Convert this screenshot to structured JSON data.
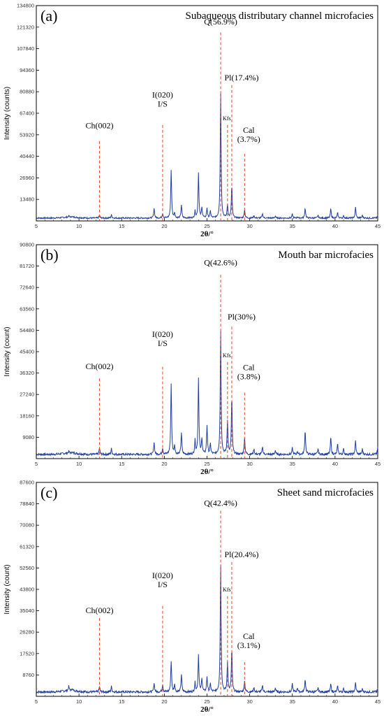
{
  "chart_data": [
    {
      "type": "line",
      "panel_letter": "(a)",
      "title": "Subaqueous distributary channel microfacies",
      "xlabel": "2θ/°",
      "ylabel": "Intensity (counts)",
      "xlim": [
        5,
        45
      ],
      "ylim": [
        0,
        134800
      ],
      "x_ticks": [
        5,
        10,
        15,
        20,
        25,
        30,
        35,
        40,
        45
      ],
      "y_ticks": [
        13480,
        26960,
        40440,
        53920,
        67400,
        80880,
        94360,
        107840,
        121320,
        134800
      ],
      "series": [
        {
          "color": "#1f3f9e",
          "x": [
            5,
            8.8,
            9.2,
            12.4,
            13.8,
            18.8,
            19.8,
            20.8,
            21.2,
            22.0,
            23.6,
            24.0,
            24.4,
            25.0,
            25.4,
            26.6,
            27.4,
            27.9,
            29.4,
            30.5,
            31.5,
            33.0,
            35.0,
            35.6,
            36.5,
            38.0,
            39.5,
            40.3,
            41.0,
            42.4,
            43.2,
            45
          ],
          "y": [
            2000,
            2600,
            2200,
            3600,
            3800,
            8000,
            4800,
            32000,
            5000,
            10000,
            6000,
            30000,
            8500,
            8000,
            6000,
            80000,
            10000,
            22000,
            7000,
            3200,
            4500,
            3000,
            4200,
            2500,
            8000,
            3500,
            7500,
            5000,
            3000,
            8500,
            3500,
            3200
          ]
        }
      ],
      "annotations": [
        {
          "label": "Ch(002)",
          "x": 12.4,
          "label_y": 58000,
          "line_top": 50000
        },
        {
          "label": "I(020)",
          "label2": "I/S",
          "x": 19.8,
          "label_y": 72000,
          "line_top": 60000
        },
        {
          "label": "Q(56.9%)",
          "x": 26.6,
          "label_y": 123000,
          "line_top": 118000
        },
        {
          "label": "Kfs",
          "x": 27.4,
          "label_y": 63000,
          "line_top": 60000,
          "small": true
        },
        {
          "label": "Pl(17.4%)",
          "x": 27.9,
          "label_y": 88000,
          "line_top": 85000
        },
        {
          "label": "Cal",
          "label2": "(3.7%)",
          "x": 29.4,
          "label_y": 50000,
          "line_top": 42000
        }
      ]
    },
    {
      "type": "line",
      "panel_letter": "(b)",
      "title": "Mouth bar microfacies",
      "xlabel": "2θ/°",
      "ylabel": "Intensity (count)",
      "xlim": [
        5,
        45
      ],
      "ylim": [
        0,
        90800
      ],
      "x_ticks": [
        5,
        10,
        15,
        20,
        25,
        30,
        35,
        40,
        45
      ],
      "y_ticks": [
        9080,
        18160,
        27240,
        36320,
        45400,
        54480,
        63560,
        72640,
        81720,
        90800
      ],
      "series": [
        {
          "color": "#1f3f9e",
          "x": [
            5,
            8.8,
            9.2,
            12.4,
            13.8,
            18.8,
            19.8,
            20.8,
            21.2,
            22.0,
            23.6,
            24.0,
            24.4,
            25.0,
            25.4,
            26.6,
            27.4,
            27.9,
            29.4,
            30.5,
            31.5,
            33.0,
            35.0,
            35.6,
            36.5,
            38.0,
            39.5,
            40.3,
            41.0,
            42.4,
            43.2,
            45
          ],
          "y": [
            2000,
            2500,
            2200,
            4500,
            4200,
            7000,
            4500,
            32000,
            5500,
            11000,
            7500,
            34000,
            8500,
            14000,
            6000,
            54000,
            16000,
            26000,
            9000,
            4000,
            5000,
            3500,
            4500,
            3000,
            12000,
            4000,
            9000,
            6000,
            4000,
            7500,
            4000,
            4500
          ]
        }
      ],
      "annotations": [
        {
          "label": "Ch(002)",
          "x": 12.4,
          "label_y": 38000,
          "line_top": 34000
        },
        {
          "label": "I(020)",
          "label2": "I/S",
          "x": 19.8,
          "label_y": 48000,
          "line_top": 39000
        },
        {
          "label": "Q(42.6%)",
          "x": 26.6,
          "label_y": 82000,
          "line_top": 78000
        },
        {
          "label": "Kfs",
          "x": 27.4,
          "label_y": 43000,
          "line_top": 41000,
          "small": true
        },
        {
          "label": "Pl(30%)",
          "x": 27.9,
          "label_y": 59000,
          "line_top": 56000
        },
        {
          "label": "Cal",
          "label2": "(3.8%)",
          "x": 29.4,
          "label_y": 34000,
          "line_top": 28000
        }
      ]
    },
    {
      "type": "line",
      "panel_letter": "(c)",
      "title": "Sheet sand microfacies",
      "xlabel": "2θ/°",
      "ylabel": "Intensity (count)",
      "xlim": [
        5,
        45
      ],
      "ylim": [
        0,
        87600
      ],
      "x_ticks": [
        5,
        10,
        15,
        20,
        25,
        30,
        35,
        40,
        45
      ],
      "y_ticks": [
        8760,
        17520,
        26280,
        35040,
        43800,
        52560,
        61320,
        70080,
        78840,
        87600
      ],
      "series": [
        {
          "color": "#1f3f9e",
          "x": [
            5,
            8.8,
            9.2,
            12.4,
            13.8,
            18.8,
            19.8,
            20.8,
            21.2,
            22.0,
            23.6,
            24.0,
            24.4,
            25.0,
            25.4,
            26.6,
            27.4,
            27.9,
            29.4,
            30.5,
            31.5,
            33.0,
            35.0,
            35.6,
            36.5,
            38.0,
            39.5,
            40.3,
            41.0,
            42.4,
            43.2,
            45
          ],
          "y": [
            1500,
            3500,
            2500,
            4000,
            4000,
            5500,
            5000,
            14500,
            5000,
            9000,
            5500,
            17000,
            7500,
            8000,
            5000,
            54000,
            14000,
            19000,
            6500,
            3500,
            4500,
            3500,
            5000,
            3500,
            7000,
            3500,
            5000,
            4000,
            3000,
            5500,
            3000,
            3000
          ]
        }
      ],
      "annotations": [
        {
          "label": "Ch(002)",
          "x": 12.4,
          "label_y": 34000,
          "line_top": 32000
        },
        {
          "label": "I(020)",
          "label2": "I/S",
          "x": 19.8,
          "label_y": 45000,
          "line_top": 37000
        },
        {
          "label": "Q(42.4%)",
          "x": 26.6,
          "label_y": 78000,
          "line_top": 76000
        },
        {
          "label": "Kfs",
          "x": 27.4,
          "label_y": 43000,
          "line_top": 41000,
          "small": true
        },
        {
          "label": "Pl(20.4%)",
          "x": 27.9,
          "label_y": 57000,
          "line_top": 55000
        },
        {
          "label": "Cal",
          "label2": "(3.1%)",
          "x": 29.4,
          "label_y": 20000,
          "line_top": 14000
        }
      ]
    }
  ],
  "colors": {
    "trace": "#1f3f9e",
    "marker_line": "#e8402a"
  }
}
